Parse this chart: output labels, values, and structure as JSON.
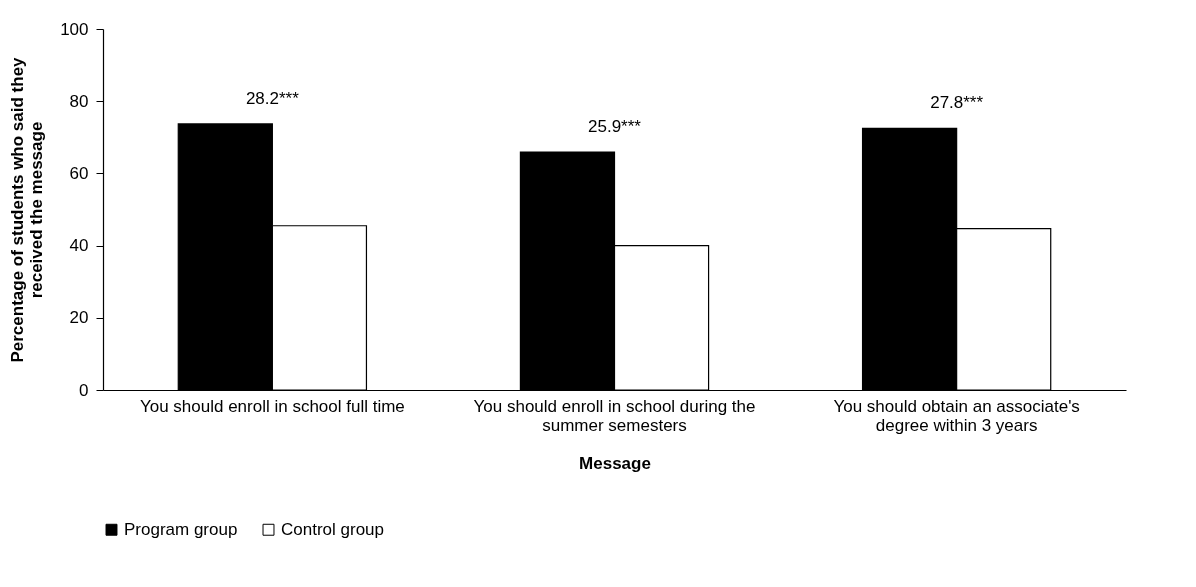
{
  "chart_data": {
    "type": "bar",
    "xlabel": "Message",
    "ylabel": "Percentage of students who said they received the message",
    "categories": [
      "You should enroll in school full time",
      "You should enroll in school during the summer semesters",
      "You should obtain an associate's degree within 3 years"
    ],
    "series": [
      {
        "name": "Program group",
        "color": "#000000",
        "values": [
          73.7,
          65.9,
          72.5
        ]
      },
      {
        "name": "Control group",
        "color": "#ffffff",
        "values": [
          45.5,
          40.0,
          44.7
        ]
      }
    ],
    "ylim": [
      0,
      100
    ],
    "yticks": [
      0,
      20,
      40,
      60,
      80,
      100
    ],
    "grid": false,
    "legend": "bottom",
    "annotations": [
      "28.2***",
      "25.9***",
      "27.8***"
    ]
  }
}
